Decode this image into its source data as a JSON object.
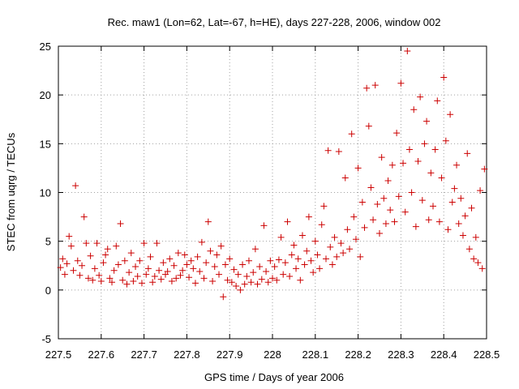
{
  "chart_data": {
    "type": "scatter",
    "title": "Rec. maw1 (Lon=62, Lat=-67, h=HE), days 227-228, 2006, window 002",
    "xlabel": "GPS time / Days of year 2006",
    "ylabel": "STEC from uqrg / TECUs",
    "xlim": [
      227.5,
      228.5
    ],
    "ylim": [
      -5,
      25
    ],
    "xticks": [
      227.5,
      227.6,
      227.7,
      227.8,
      227.9,
      228.0,
      228.1,
      228.2,
      228.3,
      228.4,
      228.5
    ],
    "xtick_labels": [
      "227.5",
      "227.6",
      "227.7",
      "227.8",
      "227.9",
      "228",
      "228.1",
      "228.2",
      "228.3",
      "228.4",
      "228.5"
    ],
    "yticks": [
      -5,
      0,
      5,
      10,
      15,
      20,
      25
    ],
    "ytick_labels": [
      "-5",
      "0",
      "5",
      "10",
      "15",
      "20",
      "25"
    ],
    "grid": true,
    "marker": "+",
    "color": "#cc0000",
    "points": [
      [
        227.505,
        2.3
      ],
      [
        227.51,
        3.2
      ],
      [
        227.515,
        1.6
      ],
      [
        227.52,
        2.7
      ],
      [
        227.525,
        5.5
      ],
      [
        227.53,
        4.5
      ],
      [
        227.535,
        2.0
      ],
      [
        227.54,
        10.7
      ],
      [
        227.545,
        3.0
      ],
      [
        227.55,
        1.5
      ],
      [
        227.555,
        2.5
      ],
      [
        227.56,
        7.5
      ],
      [
        227.565,
        4.8
      ],
      [
        227.57,
        1.2
      ],
      [
        227.575,
        3.5
      ],
      [
        227.58,
        1.0
      ],
      [
        227.585,
        2.2
      ],
      [
        227.59,
        4.8
      ],
      [
        227.595,
        1.5
      ],
      [
        227.6,
        0.9
      ],
      [
        227.605,
        2.8
      ],
      [
        227.61,
        3.6
      ],
      [
        227.615,
        4.2
      ],
      [
        227.62,
        1.2
      ],
      [
        227.625,
        0.8
      ],
      [
        227.63,
        2.0
      ],
      [
        227.635,
        4.5
      ],
      [
        227.64,
        2.6
      ],
      [
        227.645,
        6.8
      ],
      [
        227.65,
        1.0
      ],
      [
        227.655,
        3.0
      ],
      [
        227.66,
        0.6
      ],
      [
        227.665,
        1.8
      ],
      [
        227.67,
        3.8
      ],
      [
        227.675,
        0.9
      ],
      [
        227.68,
        2.4
      ],
      [
        227.685,
        1.4
      ],
      [
        227.69,
        3.0
      ],
      [
        227.695,
        0.7
      ],
      [
        227.7,
        4.8
      ],
      [
        227.705,
        1.6
      ],
      [
        227.71,
        2.2
      ],
      [
        227.715,
        3.4
      ],
      [
        227.72,
        0.8
      ],
      [
        227.725,
        1.4
      ],
      [
        227.73,
        4.8
      ],
      [
        227.735,
        2.0
      ],
      [
        227.74,
        1.1
      ],
      [
        227.745,
        2.8
      ],
      [
        227.75,
        1.6
      ],
      [
        227.755,
        1.9
      ],
      [
        227.76,
        3.2
      ],
      [
        227.765,
        0.9
      ],
      [
        227.77,
        2.5
      ],
      [
        227.775,
        1.2
      ],
      [
        227.78,
        3.8
      ],
      [
        227.785,
        1.5
      ],
      [
        227.79,
        2.0
      ],
      [
        227.795,
        3.6
      ],
      [
        227.8,
        2.6
      ],
      [
        227.805,
        1.3
      ],
      [
        227.81,
        3.0
      ],
      [
        227.815,
        2.2
      ],
      [
        227.82,
        0.7
      ],
      [
        227.825,
        3.4
      ],
      [
        227.83,
        1.9
      ],
      [
        227.835,
        4.9
      ],
      [
        227.84,
        1.2
      ],
      [
        227.845,
        2.8
      ],
      [
        227.85,
        7.0
      ],
      [
        227.855,
        4.0
      ],
      [
        227.86,
        0.9
      ],
      [
        227.865,
        2.4
      ],
      [
        227.87,
        3.6
      ],
      [
        227.875,
        1.6
      ],
      [
        227.88,
        4.5
      ],
      [
        227.885,
        -0.7
      ],
      [
        227.89,
        2.6
      ],
      [
        227.895,
        1.0
      ],
      [
        227.9,
        3.2
      ],
      [
        227.905,
        0.8
      ],
      [
        227.91,
        2.1
      ],
      [
        227.915,
        0.4
      ],
      [
        227.92,
        1.6
      ],
      [
        227.925,
        0.0
      ],
      [
        227.93,
        2.6
      ],
      [
        227.935,
        0.6
      ],
      [
        227.94,
        1.4
      ],
      [
        227.945,
        3.0
      ],
      [
        227.95,
        0.8
      ],
      [
        227.955,
        1.8
      ],
      [
        227.96,
        4.2
      ],
      [
        227.965,
        0.6
      ],
      [
        227.97,
        2.4
      ],
      [
        227.975,
        1.1
      ],
      [
        227.98,
        6.6
      ],
      [
        227.985,
        1.9
      ],
      [
        227.99,
        0.8
      ],
      [
        227.995,
        3.0
      ],
      [
        228.0,
        1.2
      ],
      [
        228.005,
        2.4
      ],
      [
        228.01,
        1.0
      ],
      [
        228.015,
        3.1
      ],
      [
        228.02,
        5.4
      ],
      [
        228.025,
        1.6
      ],
      [
        228.03,
        2.8
      ],
      [
        228.035,
        7.0
      ],
      [
        228.04,
        1.4
      ],
      [
        228.045,
        3.6
      ],
      [
        228.05,
        4.6
      ],
      [
        228.055,
        2.2
      ],
      [
        228.06,
        3.2
      ],
      [
        228.065,
        1.0
      ],
      [
        228.07,
        5.6
      ],
      [
        228.075,
        2.6
      ],
      [
        228.08,
        4.0
      ],
      [
        228.085,
        7.5
      ],
      [
        228.09,
        3.0
      ],
      [
        228.095,
        1.8
      ],
      [
        228.1,
        5.0
      ],
      [
        228.105,
        3.6
      ],
      [
        228.11,
        2.2
      ],
      [
        228.115,
        6.7
      ],
      [
        228.12,
        8.6
      ],
      [
        228.125,
        3.2
      ],
      [
        228.13,
        14.3
      ],
      [
        228.135,
        4.4
      ],
      [
        228.14,
        2.6
      ],
      [
        228.145,
        5.4
      ],
      [
        228.15,
        3.4
      ],
      [
        228.155,
        14.2
      ],
      [
        228.16,
        4.8
      ],
      [
        228.165,
        3.8
      ],
      [
        228.17,
        11.5
      ],
      [
        228.175,
        6.2
      ],
      [
        228.18,
        4.2
      ],
      [
        228.185,
        16.0
      ],
      [
        228.19,
        7.5
      ],
      [
        228.195,
        5.2
      ],
      [
        228.2,
        12.5
      ],
      [
        228.205,
        3.4
      ],
      [
        228.21,
        9.0
      ],
      [
        228.215,
        6.4
      ],
      [
        228.22,
        20.7
      ],
      [
        228.225,
        16.8
      ],
      [
        228.23,
        10.5
      ],
      [
        228.235,
        7.2
      ],
      [
        228.24,
        21.0
      ],
      [
        228.245,
        8.8
      ],
      [
        228.25,
        5.8
      ],
      [
        228.255,
        13.6
      ],
      [
        228.26,
        9.4
      ],
      [
        228.265,
        6.8
      ],
      [
        228.27,
        11.2
      ],
      [
        228.275,
        8.2
      ],
      [
        228.28,
        12.8
      ],
      [
        228.285,
        7.0
      ],
      [
        228.29,
        16.1
      ],
      [
        228.295,
        9.6
      ],
      [
        228.3,
        21.2
      ],
      [
        228.305,
        13.0
      ],
      [
        228.31,
        8.0
      ],
      [
        228.315,
        24.5
      ],
      [
        228.32,
        14.4
      ],
      [
        228.325,
        10.0
      ],
      [
        228.33,
        18.5
      ],
      [
        228.335,
        6.5
      ],
      [
        228.34,
        13.2
      ],
      [
        228.345,
        19.8
      ],
      [
        228.35,
        9.2
      ],
      [
        228.355,
        15.0
      ],
      [
        228.36,
        17.3
      ],
      [
        228.365,
        7.2
      ],
      [
        228.37,
        12.0
      ],
      [
        228.375,
        8.6
      ],
      [
        228.38,
        14.4
      ],
      [
        228.385,
        19.4
      ],
      [
        228.39,
        7.0
      ],
      [
        228.395,
        11.5
      ],
      [
        228.4,
        21.8
      ],
      [
        228.405,
        15.3
      ],
      [
        228.41,
        6.2
      ],
      [
        228.415,
        18.0
      ],
      [
        228.42,
        9.0
      ],
      [
        228.425,
        10.4
      ],
      [
        228.43,
        12.8
      ],
      [
        228.435,
        6.8
      ],
      [
        228.44,
        9.4
      ],
      [
        228.445,
        5.6
      ],
      [
        228.45,
        7.6
      ],
      [
        228.455,
        14.0
      ],
      [
        228.46,
        4.2
      ],
      [
        228.465,
        8.4
      ],
      [
        228.47,
        3.2
      ],
      [
        228.475,
        5.4
      ],
      [
        228.48,
        2.8
      ],
      [
        228.485,
        10.2
      ],
      [
        228.49,
        2.2
      ],
      [
        228.495,
        12.4
      ]
    ]
  }
}
